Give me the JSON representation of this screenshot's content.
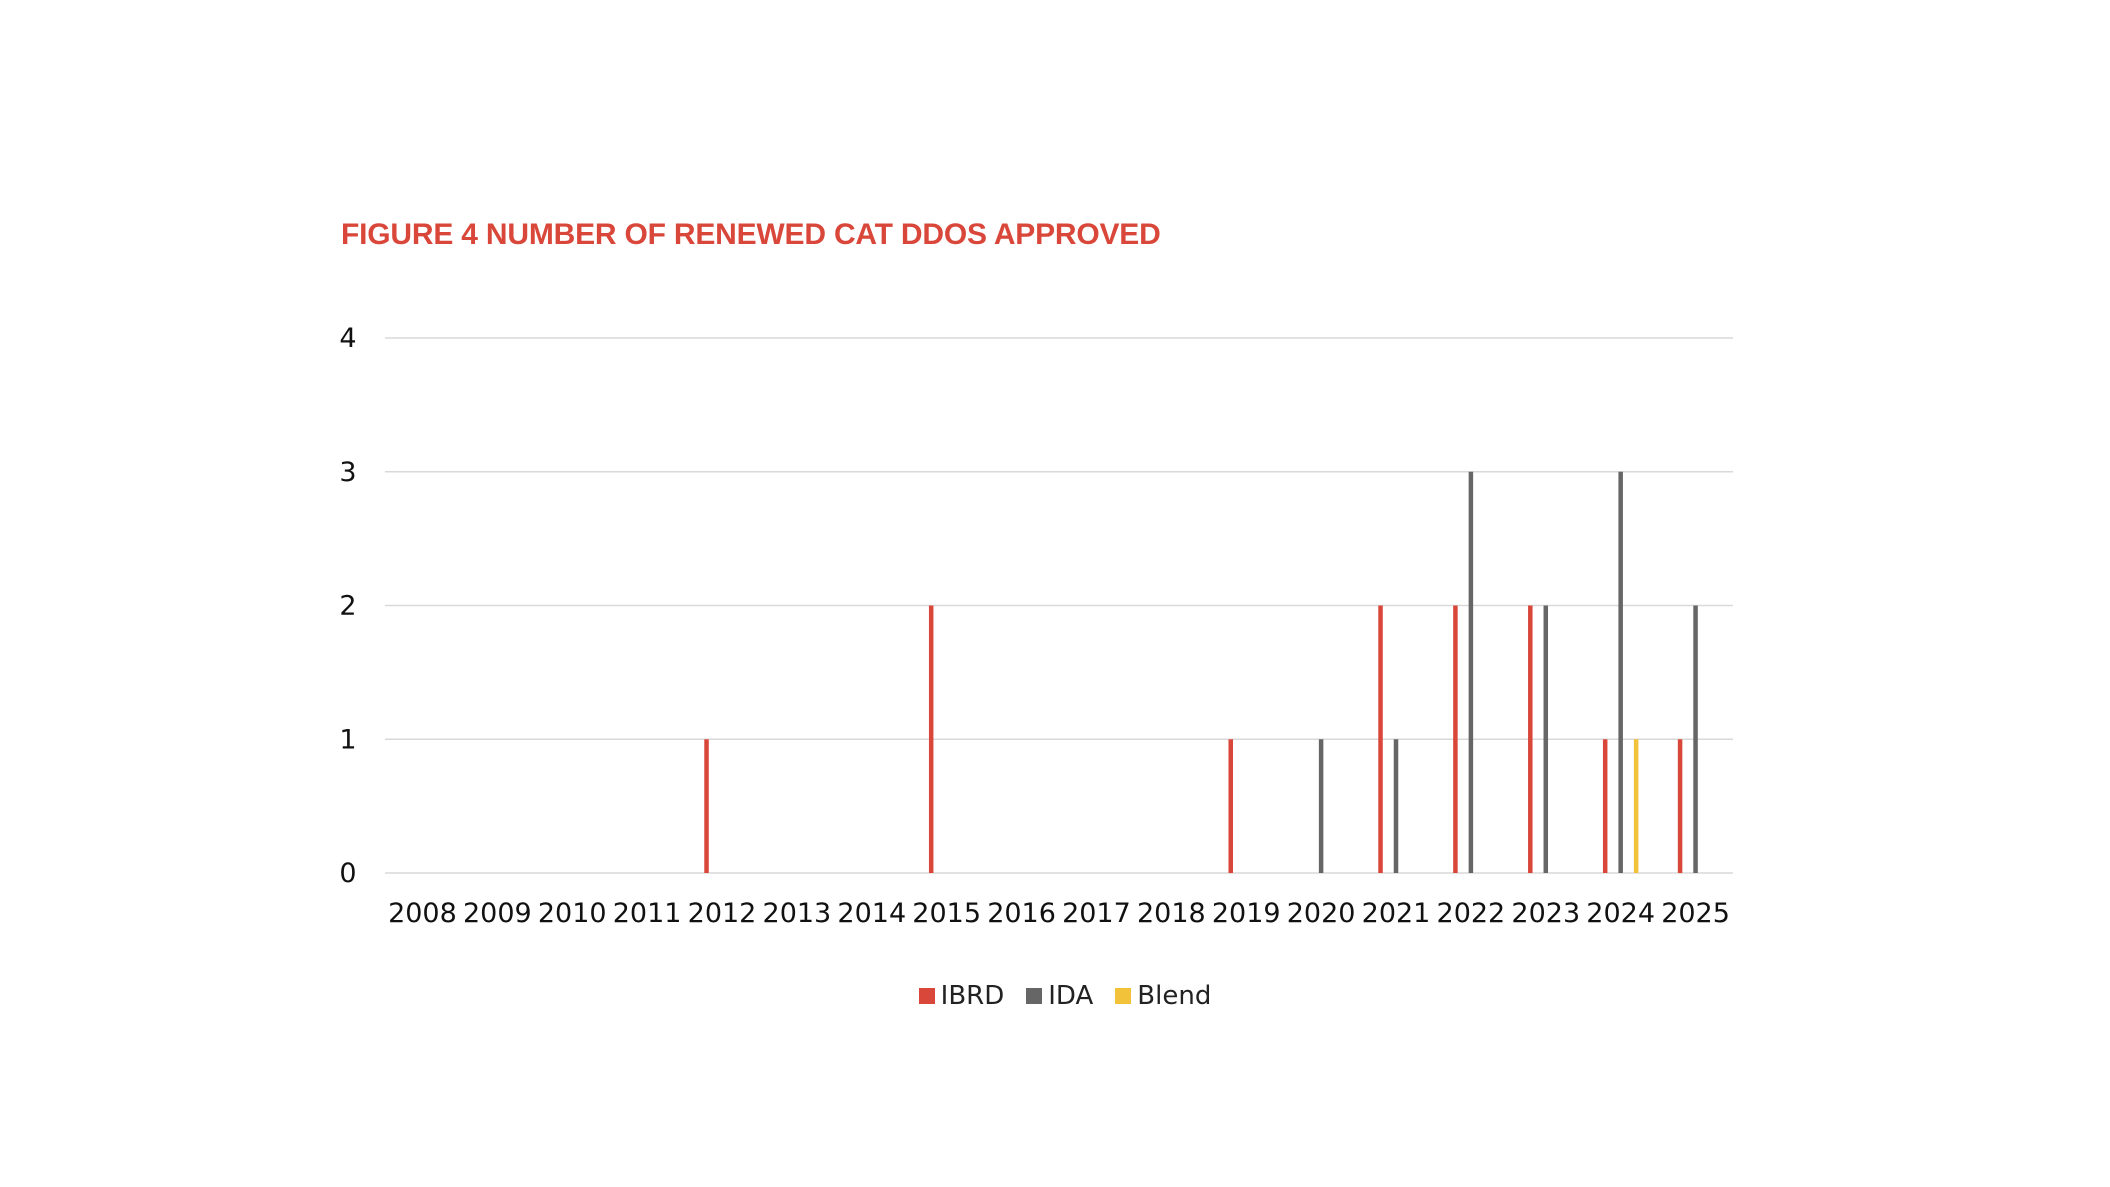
{
  "title": "FIGURE 4 NUMBER OF RENEWED CAT DDOS APPROVED",
  "colors": {
    "title": "#d9473a",
    "gridline": "#d9d9d9",
    "IBRD": "#d9473a",
    "IDA": "#666666",
    "Blend": "#f2c23a"
  },
  "chart_data": {
    "type": "bar",
    "title": "FIGURE 4 NUMBER OF RENEWED CAT DDOS APPROVED",
    "xlabel": "",
    "ylabel": "",
    "ylim": [
      0,
      4
    ],
    "yticks": [
      "0",
      "1",
      "2",
      "3",
      "4"
    ],
    "grid": true,
    "legend_position": "bottom-center",
    "categories": [
      "2008",
      "2009",
      "2010",
      "2011",
      "2012",
      "2013",
      "2014",
      "2015",
      "2016",
      "2017",
      "2018",
      "2019",
      "2020",
      "2021",
      "2022",
      "2023",
      "2024",
      "2025"
    ],
    "series": [
      {
        "name": "IBRD",
        "color": "#d9473a",
        "values": [
          0,
          0,
          0,
          0,
          1,
          0,
          0,
          2,
          0,
          0,
          0,
          1,
          0,
          2,
          2,
          2,
          1,
          1
        ]
      },
      {
        "name": "IDA",
        "color": "#666666",
        "values": [
          0,
          0,
          0,
          0,
          0,
          0,
          0,
          0,
          0,
          0,
          0,
          0,
          1,
          1,
          3,
          2,
          3,
          2
        ]
      },
      {
        "name": "Blend",
        "color": "#f2c23a",
        "values": [
          0,
          0,
          0,
          0,
          0,
          0,
          0,
          0,
          0,
          0,
          0,
          0,
          0,
          0,
          0,
          0,
          1,
          0
        ]
      }
    ]
  }
}
